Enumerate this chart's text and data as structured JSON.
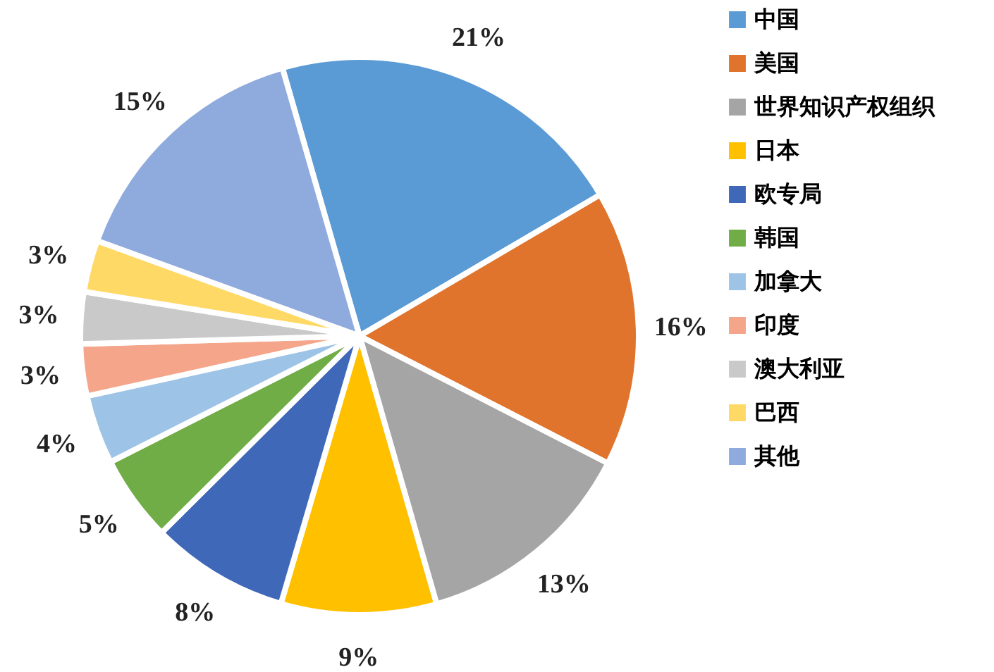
{
  "chart_data": {
    "type": "pie",
    "categories": [
      "中国",
      "美国",
      "世界知识产权组织",
      "日本",
      "欧专局",
      "韩国",
      "加拿大",
      "印度",
      "澳大利亚",
      "巴西",
      "其他"
    ],
    "values": [
      21,
      16,
      13,
      9,
      8,
      5,
      4,
      3,
      3,
      3,
      15
    ],
    "value_labels": [
      "21%",
      "16%",
      "13%",
      "9%",
      "8%",
      "5%",
      "4%",
      "3%",
      "3%",
      "3%",
      "15%"
    ],
    "colors": [
      "#5b9bd5",
      "#e0742d",
      "#a5a5a5",
      "#ffc000",
      "#4068b8",
      "#70ad47",
      "#9dc3e6",
      "#f4a58a",
      "#c9c9c9",
      "#ffd966",
      "#8faadc"
    ],
    "legend": "right"
  }
}
